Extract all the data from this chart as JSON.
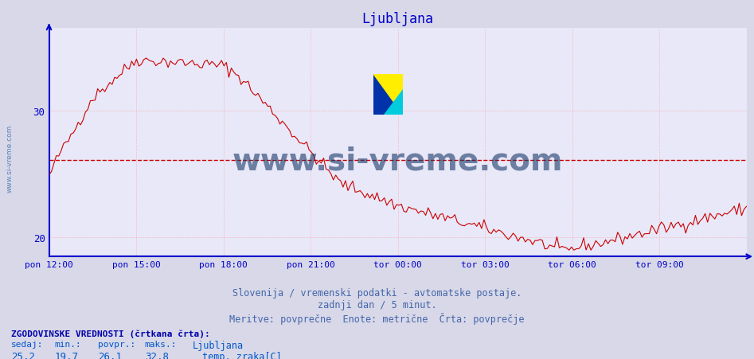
{
  "title": "Ljubljana",
  "title_color": "#0000cc",
  "bg_color": "#d8d8e8",
  "plot_bg_color": "#e8e8f8",
  "grid_color": "#ff9999",
  "axis_color": "#0000cc",
  "line_color": "#cc0000",
  "avg_line_color": "#cc0000",
  "avg_value": 26.1,
  "y_min": 18.5,
  "y_max": 36.5,
  "y_ticks": [
    20,
    30
  ],
  "x_tick_labels": [
    "pon 12:00",
    "pon 15:00",
    "pon 18:00",
    "pon 21:00",
    "tor 00:00",
    "tor 03:00",
    "tor 06:00",
    "tor 09:00"
  ],
  "watermark": "www.si-vreme.com",
  "watermark_color": "#1a3a6a",
  "subtitle1": "Slovenija / vremenski podatki - avtomatske postaje.",
  "subtitle2": "zadnji dan / 5 minut.",
  "subtitle3": "Meritve: povprečne  Enote: metrične  Črta: povprečje",
  "footer_label": "ZGODOVINSKE VREDNOSTI (črtkana črta):",
  "col_headers": [
    "sedaj:",
    "min.:",
    "povpr.:",
    "maks.:"
  ],
  "col_values": [
    "25,2",
    "19,7",
    "26,1",
    "32,8"
  ],
  "legend_label": "Ljubljana",
  "legend_sublabel": "temp. zraka[C]",
  "text_color": "#0000aa",
  "subtitle_color": "#4466aa"
}
